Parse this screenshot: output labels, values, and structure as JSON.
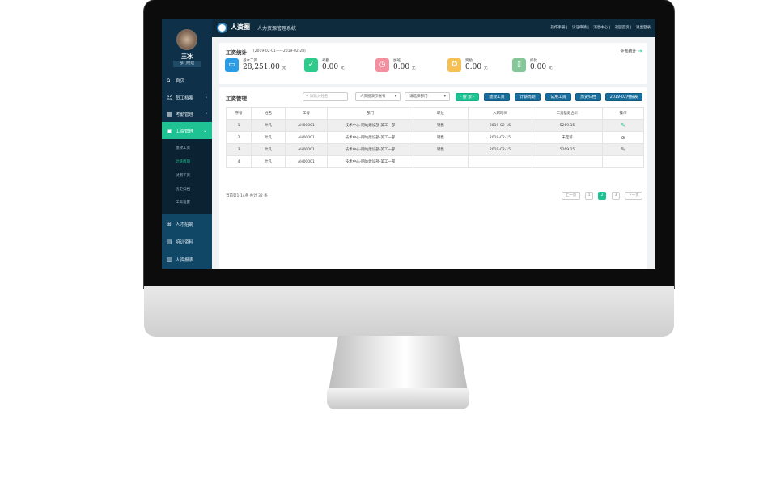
{
  "header": {
    "brand": "人资圈",
    "system": "人力资源管理系统",
    "links": [
      "操作手册",
      "认证申请",
      "消息中心",
      "返回首页",
      "退出登录"
    ]
  },
  "user": {
    "name": "王冰",
    "role": "部门经理"
  },
  "sidebar": {
    "items": [
      {
        "label": "首页",
        "icon": "home-icon"
      },
      {
        "label": "员工档案",
        "icon": "user-file-icon"
      },
      {
        "label": "考勤管理",
        "icon": "calendar-icon"
      },
      {
        "label": "工资管理",
        "icon": "wallet-icon",
        "active": true
      }
    ],
    "subitems": [
      {
        "label": "绩效工资"
      },
      {
        "label": "计薪周期",
        "active": true
      },
      {
        "label": "试用工资"
      },
      {
        "label": "历史归档"
      },
      {
        "label": "工资设置"
      }
    ],
    "lower": [
      {
        "label": "人才招聘",
        "icon": "recruit-icon"
      },
      {
        "label": "培训资料",
        "icon": "training-icon"
      },
      {
        "label": "人资报表",
        "icon": "report-icon"
      }
    ]
  },
  "stats": {
    "title": "工资统计",
    "range": "(2019-02-01——2019-02-28)",
    "all_label": "全部统计",
    "items": [
      {
        "label": "基本工资",
        "value": "28,251.00",
        "unit": "元",
        "color": "#2a9de6",
        "icon": "card-icon"
      },
      {
        "label": "考勤",
        "value": "0.00",
        "unit": "元",
        "color": "#2fcb8c",
        "icon": "calendar-check-icon"
      },
      {
        "label": "加班",
        "value": "0.00",
        "unit": "元",
        "color": "#f48fa0",
        "icon": "overtime-icon"
      },
      {
        "label": "奖励",
        "value": "0.00",
        "unit": "元",
        "color": "#f5c155",
        "icon": "medal-icon"
      },
      {
        "label": "扣款",
        "value": "0.00",
        "unit": "元",
        "color": "#86c79a",
        "icon": "deduct-icon"
      }
    ]
  },
  "salary": {
    "title": "工资管理",
    "search_placeholder": "请输入姓名",
    "account_select": "人资圈演示账号",
    "dept_select": "请选择部门",
    "search_btn": "- 搜 索 -",
    "buttons": [
      "绩效工资",
      "计薪周期",
      "试用工资",
      "历史归档",
      "2019-02月报表"
    ],
    "columns": [
      "序号",
      "姓名",
      "工号",
      "部门",
      "职位",
      "入职时间",
      "工资基数合计",
      "操作"
    ],
    "rows": [
      [
        "1",
        "叶凡",
        "AH00001",
        "技术中心-网站建设部-美工一部",
        "销售",
        "2019-02-15",
        "5269.15"
      ],
      [
        "2",
        "叶凡",
        "AH00001",
        "技术中心-网站建设部-美工一部",
        "销售",
        "2019-02-15",
        "未定薪"
      ],
      [
        "3",
        "叶凡",
        "AH00001",
        "技术中心-网站建设部-美工一部",
        "销售",
        "2019-02-15",
        "5269.15"
      ],
      [
        "4",
        "叶凡",
        "AH00001",
        "技术中心-网站建设部-美工一部",
        "",
        "",
        ""
      ]
    ],
    "footer": "当前第1-14条  共计 32 条",
    "pagination": {
      "prev": "上一页",
      "pages": [
        "1",
        "2",
        "3"
      ],
      "current": "2",
      "next": "下一页"
    }
  },
  "colors": {
    "sidebar": "#0e3149",
    "accent": "#1ec293",
    "button": "#1a6d9b"
  }
}
